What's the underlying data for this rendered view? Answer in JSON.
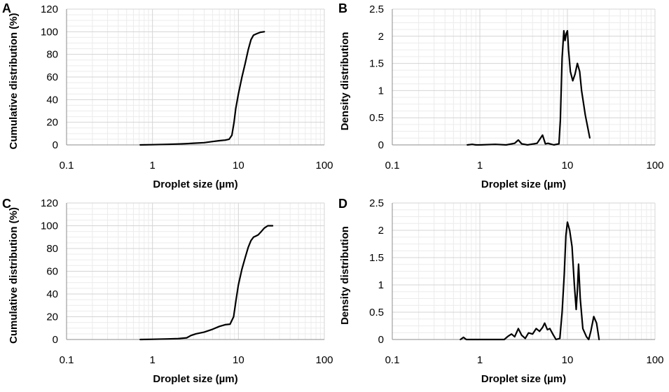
{
  "colors": {
    "curve": "#000000",
    "grid_major": "#d4d4d4",
    "grid_minor": "#ececec",
    "axis": "#8c8c8c"
  },
  "chart_data": [
    {
      "panel": "A",
      "type": "line",
      "xscale": "log",
      "xlim": [
        0.1,
        100
      ],
      "ylim": [
        0,
        120
      ],
      "xticks": [
        0.1,
        1,
        10,
        100
      ],
      "xtick_labels": [
        "0.1",
        "1",
        "10",
        "100"
      ],
      "yticks": [
        0,
        20,
        40,
        60,
        80,
        100,
        120
      ],
      "ytick_labels": [
        "0",
        "20",
        "40",
        "60",
        "80",
        "100",
        "120"
      ],
      "xlabel": "Droplet size (µm)",
      "ylabel": "Cumulative distribution (%)",
      "series": [
        {
          "name": "cumulative",
          "x": [
            0.72,
            1.0,
            1.5,
            2.0,
            2.5,
            3.0,
            4.0,
            5.0,
            6.0,
            7.0,
            7.8,
            8.4,
            8.9,
            9.3,
            10.0,
            11.0,
            12.0,
            13.0,
            14.0,
            15.0,
            16.0,
            18.0,
            20.0
          ],
          "y": [
            0,
            0.2,
            0.5,
            0.8,
            1.1,
            1.5,
            2.0,
            3.0,
            3.7,
            4.2,
            5.0,
            8.5,
            20.0,
            32.0,
            45.0,
            60.0,
            72.0,
            84.0,
            93.0,
            97.0,
            98.0,
            99.5,
            100.0
          ]
        }
      ]
    },
    {
      "panel": "B",
      "type": "line",
      "xscale": "log",
      "xlim": [
        0.1,
        100
      ],
      "ylim": [
        0,
        2.5
      ],
      "xticks": [
        0.1,
        1,
        10,
        100
      ],
      "xtick_labels": [
        "0.1",
        "1",
        "10",
        "100"
      ],
      "yticks": [
        0,
        0.5,
        1,
        1.5,
        2,
        2.5
      ],
      "ytick_labels": [
        "0",
        "0.5",
        "1",
        "1.5",
        "2",
        "2.5"
      ],
      "xlabel": "Droplet size (µm)",
      "ylabel": "Density distribution",
      "series": [
        {
          "name": "density",
          "x": [
            0.72,
            0.82,
            0.9,
            1.0,
            1.5,
            2.0,
            2.5,
            2.75,
            3.0,
            3.5,
            4.5,
            5.2,
            5.6,
            6.0,
            7.0,
            8.0,
            8.3,
            8.7,
            9.1,
            9.4,
            9.7,
            10.0,
            10.3,
            10.8,
            11.5,
            12.2,
            13.0,
            13.8,
            14.5,
            16.0,
            18.0
          ],
          "y": [
            0,
            0.01,
            0,
            0,
            0.01,
            0,
            0.03,
            0.09,
            0.02,
            0,
            0.03,
            0.18,
            0.02,
            0.03,
            0,
            0.02,
            0.45,
            1.6,
            2.1,
            1.92,
            2.05,
            2.1,
            1.75,
            1.35,
            1.18,
            1.3,
            1.5,
            1.35,
            1.0,
            0.55,
            0.13
          ]
        }
      ]
    },
    {
      "panel": "C",
      "type": "line",
      "xscale": "log",
      "xlim": [
        0.1,
        100
      ],
      "ylim": [
        0,
        120
      ],
      "xticks": [
        0.1,
        1,
        10,
        100
      ],
      "xtick_labels": [
        "0.1",
        "1",
        "10",
        "100"
      ],
      "yticks": [
        0,
        20,
        40,
        60,
        80,
        100,
        120
      ],
      "ytick_labels": [
        "0",
        "20",
        "40",
        "60",
        "80",
        "100",
        "120"
      ],
      "xlabel": "Droplet size (µm)",
      "ylabel": "Cumulative distribution (%)",
      "series": [
        {
          "name": "cumulative",
          "x": [
            0.72,
            1.0,
            1.5,
            2.0,
            2.5,
            2.8,
            3.2,
            4.0,
            5.0,
            6.0,
            7.0,
            8.0,
            8.8,
            9.4,
            10.0,
            11.0,
            12.0,
            13.0,
            14.0,
            15.0,
            16.0,
            17.0,
            18.0,
            20.0,
            22.0,
            25.0
          ],
          "y": [
            0,
            0.2,
            0.5,
            0.8,
            1.5,
            3.5,
            5.0,
            6.5,
            9.0,
            11.5,
            13.0,
            13.5,
            20.0,
            35.0,
            48.0,
            62.0,
            72.0,
            81.0,
            87.0,
            90.0,
            91.0,
            92.0,
            94.0,
            98.0,
            100.0,
            100.0
          ]
        }
      ]
    },
    {
      "panel": "D",
      "type": "line",
      "xscale": "log",
      "xlim": [
        0.1,
        100
      ],
      "ylim": [
        0,
        2.5
      ],
      "xticks": [
        0.1,
        1,
        10,
        100
      ],
      "xtick_labels": [
        "0.1",
        "1",
        "10",
        "100"
      ],
      "yticks": [
        0,
        0.5,
        1,
        1.5,
        2,
        2.5
      ],
      "ytick_labels": [
        "0",
        "0.5",
        "1",
        "1.5",
        "2",
        "2.5"
      ],
      "xlabel": "Droplet size (µm)",
      "ylabel": "Density distribution",
      "series": [
        {
          "name": "density",
          "x": [
            0.6,
            0.65,
            0.7,
            1.9,
            2.1,
            2.3,
            2.5,
            2.75,
            3.0,
            3.3,
            3.6,
            4.0,
            4.4,
            4.8,
            5.2,
            5.5,
            5.9,
            6.3,
            6.8,
            7.4,
            8.2,
            8.7,
            9.2,
            9.6,
            10.0,
            10.6,
            11.3,
            12.0,
            12.6,
            13.0,
            13.4,
            14.0,
            15.0,
            16.5,
            17.5,
            18.5,
            20.0,
            21.5,
            23.0
          ],
          "y": [
            0,
            0.04,
            0,
            0,
            0.06,
            0.1,
            0.05,
            0.2,
            0.08,
            0.02,
            0.12,
            0.1,
            0.2,
            0.15,
            0.22,
            0.3,
            0.18,
            0.2,
            0.1,
            0,
            0.02,
            0.5,
            1.2,
            1.9,
            2.15,
            2.0,
            1.7,
            1.0,
            0.55,
            0.9,
            1.38,
            0.75,
            0.2,
            0.05,
            0,
            0.15,
            0.42,
            0.3,
            0
          ]
        }
      ]
    }
  ]
}
